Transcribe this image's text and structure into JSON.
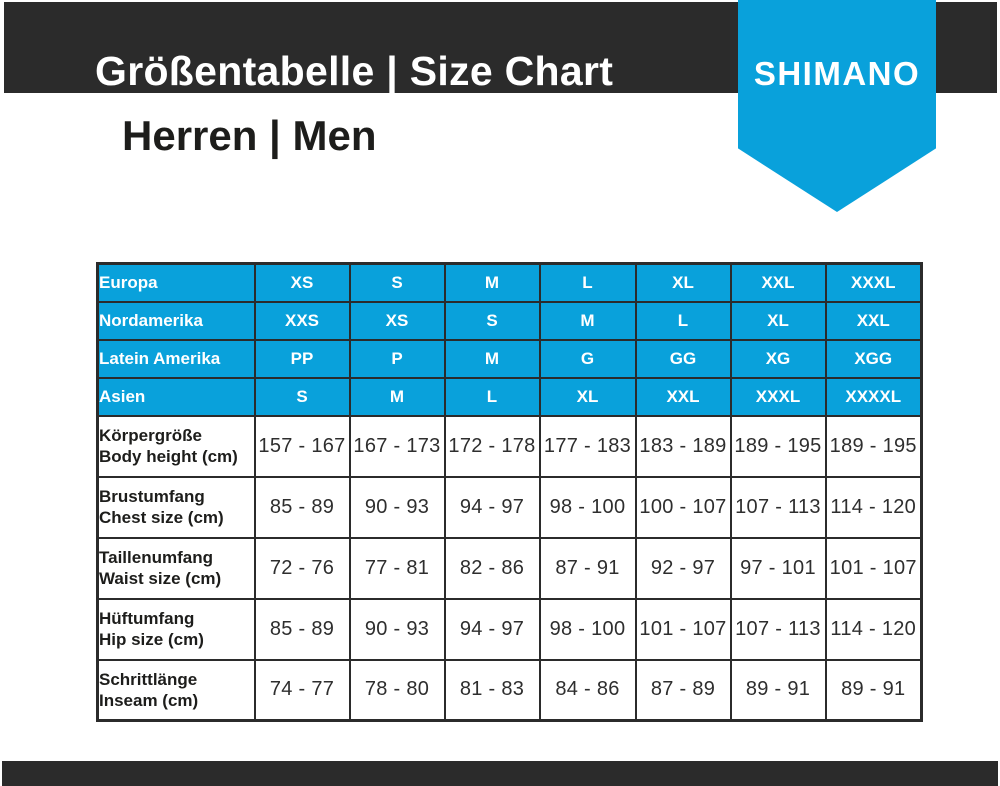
{
  "header": {
    "title": "Größentabelle | Size Chart",
    "subtitle": "Herren | Men",
    "brand": "SHIMANO"
  },
  "colors": {
    "brand_blue": "#09A1DB",
    "banner_black": "#2B2B2B",
    "text_white": "#FFFFFF",
    "text_dark": "#1D1D1B"
  },
  "table": {
    "size_systems": [
      {
        "region": "Europa",
        "sizes": [
          "XS",
          "S",
          "M",
          "L",
          "XL",
          "XXL",
          "XXXL"
        ]
      },
      {
        "region": "Nordamerika",
        "sizes": [
          "XXS",
          "XS",
          "S",
          "M",
          "L",
          "XL",
          "XXL"
        ]
      },
      {
        "region": "Latein Amerika",
        "sizes": [
          "PP",
          "P",
          "M",
          "G",
          "GG",
          "XG",
          "XGG"
        ]
      },
      {
        "region": "Asien",
        "sizes": [
          "S",
          "M",
          "L",
          "XL",
          "XXL",
          "XXXL",
          "XXXXL"
        ]
      }
    ],
    "measurements": [
      {
        "de": "Körpergröße",
        "en": "Body height (cm)",
        "values": [
          "157 - 167",
          "167 - 173",
          "172 - 178",
          "177 - 183",
          "183 - 189",
          "189 - 195",
          "189 - 195"
        ]
      },
      {
        "de": "Brustumfang",
        "en": "Chest size (cm)",
        "values": [
          "85 - 89",
          "90 - 93",
          "94 - 97",
          "98 - 100",
          "100 - 107",
          "107 - 113",
          "114 - 120"
        ]
      },
      {
        "de": "Taillenumfang",
        "en": "Waist size (cm)",
        "values": [
          "72 - 76",
          "77 - 81",
          "82 - 86",
          "87 - 91",
          "92 - 97",
          "97 - 101",
          "101 - 107"
        ]
      },
      {
        "de": "Hüftumfang",
        "en": "Hip size (cm)",
        "values": [
          "85 - 89",
          "90 - 93",
          "94 - 97",
          "98 - 100",
          "101 - 107",
          "107 - 113",
          "114 - 120"
        ]
      },
      {
        "de": "Schrittlänge",
        "en": "Inseam (cm)",
        "values": [
          "74 - 77",
          "78 - 80",
          "81 - 83",
          "84 - 86",
          "87 - 89",
          "89 - 91",
          "89 - 91"
        ]
      }
    ]
  },
  "chart_data": {
    "type": "table",
    "title": "Größentabelle | Size Chart",
    "subtitle": "Herren | Men",
    "columns": [
      "",
      "col1",
      "col2",
      "col3",
      "col4",
      "col5",
      "col6",
      "col7"
    ],
    "rows": [
      [
        "Europa",
        "XS",
        "S",
        "M",
        "L",
        "XL",
        "XXL",
        "XXXL"
      ],
      [
        "Nordamerika",
        "XXS",
        "XS",
        "S",
        "M",
        "L",
        "XL",
        "XXL"
      ],
      [
        "Latein Amerika",
        "PP",
        "P",
        "M",
        "G",
        "GG",
        "XG",
        "XGG"
      ],
      [
        "Asien",
        "S",
        "M",
        "L",
        "XL",
        "XXL",
        "XXXL",
        "XXXXL"
      ],
      [
        "Körpergröße / Body height (cm)",
        "157 - 167",
        "167 - 173",
        "172 - 178",
        "177 - 183",
        "183 - 189",
        "189 - 195",
        "189 - 195"
      ],
      [
        "Brustumfang / Chest size (cm)",
        "85 - 89",
        "90 - 93",
        "94 - 97",
        "98 - 100",
        "100 - 107",
        "107 - 113",
        "114 - 120"
      ],
      [
        "Taillenumfang / Waist size (cm)",
        "72 - 76",
        "77 - 81",
        "82 - 86",
        "87 - 91",
        "92 - 97",
        "97 - 101",
        "101 - 107"
      ],
      [
        "Hüftumfang / Hip size (cm)",
        "85 - 89",
        "90 - 93",
        "94 - 97",
        "98 - 100",
        "101 - 107",
        "107 - 113",
        "114 - 120"
      ],
      [
        "Schrittlänge / Inseam (cm)",
        "74 - 77",
        "78 - 80",
        "81 - 83",
        "84 - 86",
        "87 - 89",
        "89 - 91",
        "89 - 91"
      ]
    ]
  }
}
